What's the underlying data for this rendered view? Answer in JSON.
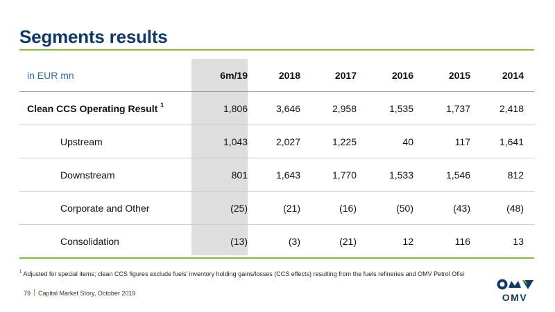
{
  "slide": {
    "title": "Segments results",
    "unit_label": "in EUR mn",
    "columns": [
      "6m/19",
      "2018",
      "2017",
      "2016",
      "2015",
      "2014"
    ],
    "rows": [
      {
        "label": "Clean CCS Operating Result",
        "superscript": "1",
        "values": [
          "1,806",
          "3,646",
          "2,958",
          "1,535",
          "1,737",
          "2,418"
        ]
      },
      {
        "label": "Upstream",
        "values": [
          "1,043",
          "2,027",
          "1,225",
          "40",
          "117",
          "1,641"
        ]
      },
      {
        "label": "Downstream",
        "values": [
          "801",
          "1,643",
          "1,770",
          "1,533",
          "1,546",
          "812"
        ]
      },
      {
        "label": "Corporate and Other",
        "values": [
          "(25)",
          "(21)",
          "(16)",
          "(50)",
          "(43)",
          "(48)"
        ]
      },
      {
        "label": "Consolidation",
        "values": [
          "(13)",
          "(3)",
          "(21)",
          "12",
          "116",
          "13"
        ]
      }
    ],
    "footnote_marker": "1",
    "footnote": "Adjusted for special items; clean CCS figures exclude fuels’ inventory holding gains/losses (CCS effects) resulting from the fuels refineries and OMV Petrol Ofisi",
    "page_number": "79",
    "footer_text": "Capital Market Story, October 2019",
    "logo_text": "OMV",
    "colors": {
      "title": "#0d3a6b",
      "accent": "#7fbf2a",
      "unit_label": "#2b6cb0",
      "highlight": "#dedede"
    }
  }
}
